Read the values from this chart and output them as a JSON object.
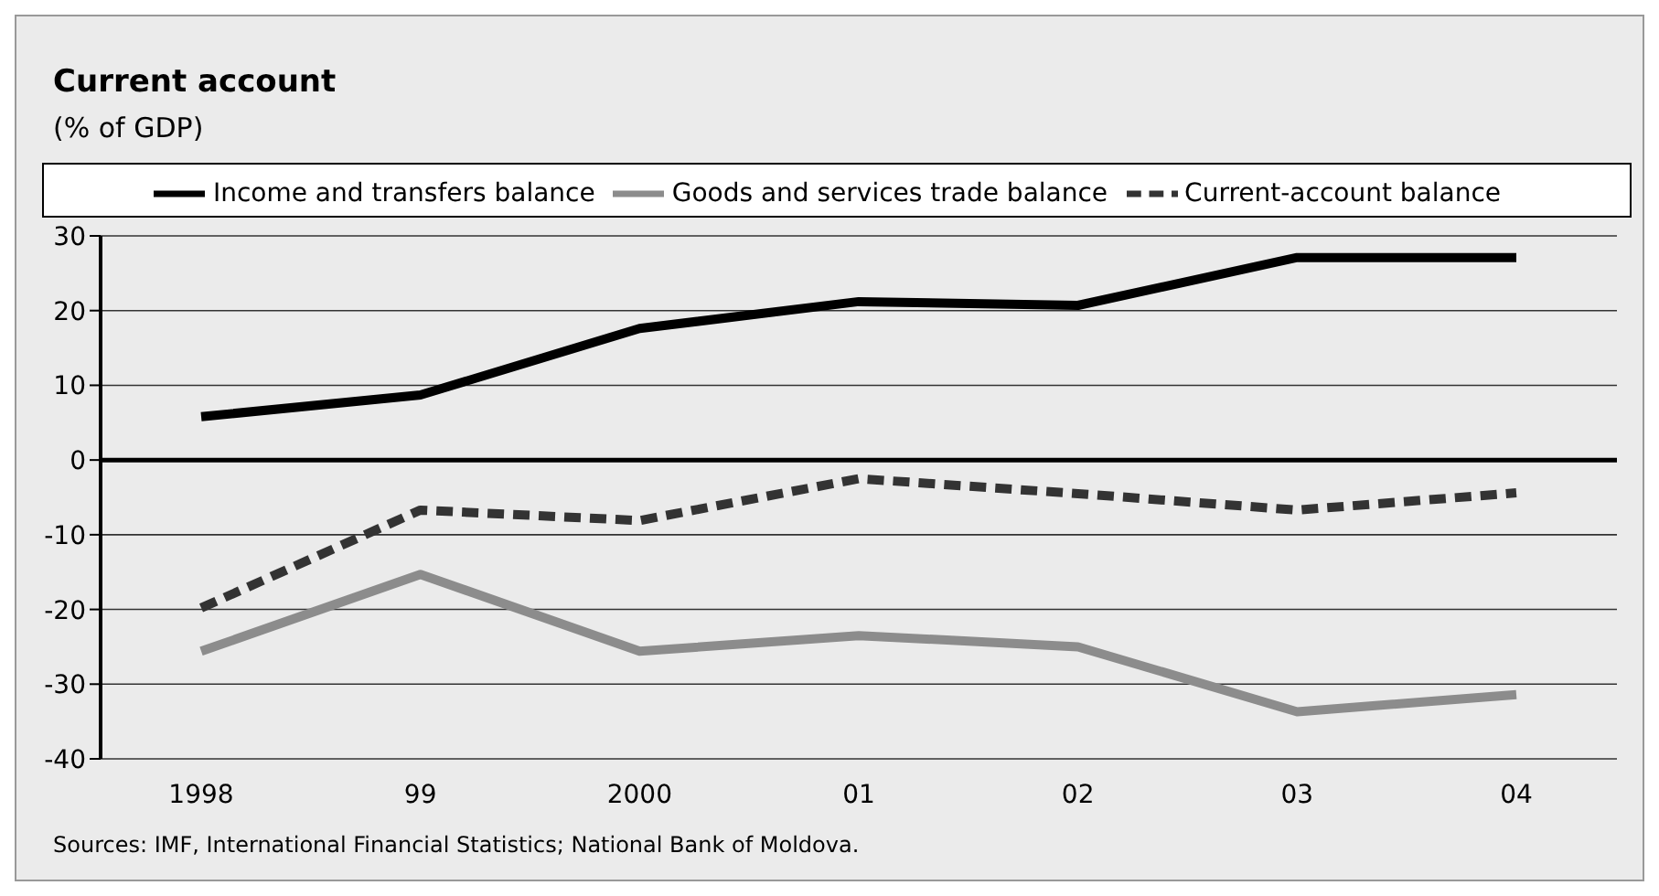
{
  "chart_data": {
    "type": "line",
    "title": "Current account",
    "subtitle": "(% of GDP)",
    "categories": [
      "1998",
      "99",
      "2000",
      "01",
      "02",
      "03",
      "04"
    ],
    "series": [
      {
        "name": "Income and transfers balance",
        "color": "#000000",
        "values": [
          5.8,
          8.7,
          17.6,
          21.2,
          20.7,
          27.1,
          27.1
        ]
      },
      {
        "name": "Goods and services trade balance",
        "color": "#8c8c8c",
        "values": [
          -25.6,
          -15.3,
          -25.6,
          -23.5,
          -25.0,
          -33.7,
          -31.4
        ]
      },
      {
        "name": "Current-account balance",
        "color": "#333333",
        "line_style": "dashed",
        "values": [
          -19.8,
          -6.7,
          -8.1,
          -2.5,
          -4.5,
          -6.7,
          -4.4
        ]
      }
    ],
    "ylim": [
      -40,
      30
    ],
    "yticks": [
      -40,
      -30,
      -20,
      -10,
      0,
      10,
      20,
      30
    ],
    "ref_lines": [
      {
        "axis": "y",
        "value": 0,
        "color": "#000000"
      }
    ],
    "grid": "y",
    "legend": "top",
    "marker": "none",
    "line_style": "solid",
    "annotations": [
      "Sources: IMF, International Financial Statistics; National Bank of Moldova."
    ]
  }
}
